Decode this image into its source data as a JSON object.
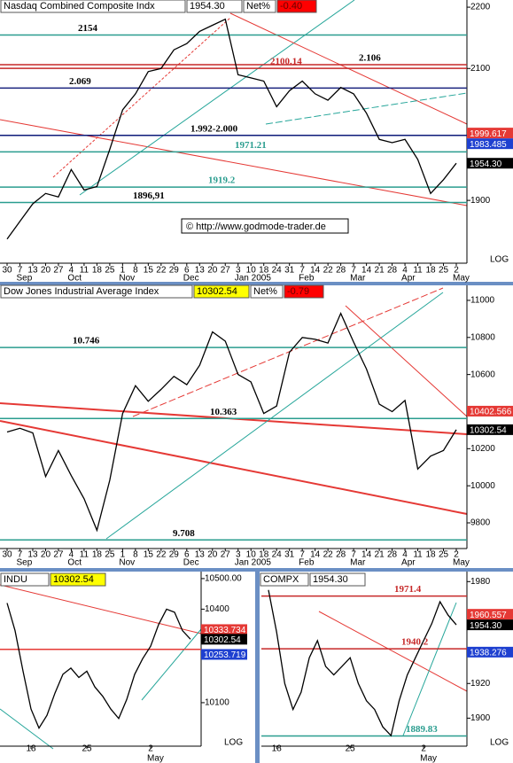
{
  "chart_data": [
    {
      "type": "line",
      "title": "Nasdaq Combined Composite Indx",
      "last": {
        "value": 1954.3,
        "label": "1954.30"
      },
      "last_color": "#ffffff",
      "net_caption": "Net%",
      "net": {
        "value": -0.4,
        "label": "-0.40"
      },
      "note": "© http://www.godmode-trader.de",
      "scale_label": "LOG",
      "log": true,
      "categories": [
        "30",
        "7",
        "13",
        "20",
        "27",
        "4",
        "11",
        "18",
        "25",
        "1",
        "8",
        "15",
        "22",
        "29",
        "6",
        "13",
        "20",
        "27",
        "3",
        "10",
        "18",
        "24",
        "31",
        "7",
        "14",
        "22",
        "28",
        "7",
        "14",
        "21",
        "28",
        "4",
        "11",
        "18",
        "25",
        "2"
      ],
      "month_labels": [
        null,
        "Sep",
        null,
        null,
        null,
        "Oct",
        null,
        null,
        null,
        "Nov",
        null,
        null,
        null,
        null,
        "Dec",
        null,
        null,
        null,
        "Jan 2005",
        null,
        null,
        null,
        null,
        "Feb",
        null,
        null,
        null,
        "Mar",
        null,
        null,
        null,
        "Apr",
        null,
        null,
        null,
        "May"
      ],
      "values": [
        1845,
        1870,
        1895,
        1910,
        1905,
        1945,
        1915,
        1920,
        1975,
        2035,
        2060,
        2095,
        2100,
        2130,
        2140,
        2160,
        2170,
        2180,
        2090,
        2085,
        2080,
        2040,
        2065,
        2080,
        2060,
        2050,
        2070,
        2060,
        2030,
        1990,
        1985,
        1990,
        1960,
        1910,
        1930,
        1954.3
      ],
      "color": "#000000",
      "ylim": [
        1814,
        2212
      ],
      "yticks": [
        1900,
        2100,
        2200
      ],
      "levels": [
        {
          "value": 2154,
          "label": "2154",
          "color": "#2a9d8f",
          "text_color": "#000000"
        },
        {
          "value": 2069,
          "label": "2.069",
          "color": "#1a237e",
          "text_color": "#000000"
        },
        {
          "value": 1996,
          "label": "1.992-2.000",
          "color": "#0d1b7a",
          "text_color": "#000000"
        },
        {
          "value": 1896.91,
          "label": "1896,91",
          "color": "#2a9d8f",
          "text_color": "#000000"
        },
        {
          "value": 2106,
          "label": "2.106",
          "color": "#c62828",
          "text_color": "#000000"
        },
        {
          "value": 2100.14,
          "label": "2100.14",
          "color": "#c62828",
          "text_color": "#c62828"
        },
        {
          "value": 1971.21,
          "label": "1971.21",
          "color": "#2a9d8f",
          "text_color": "#2a9d8f"
        },
        {
          "value": 1919.2,
          "label": "1919.2",
          "color": "#2a9d8f",
          "text_color": "#2a9d8f"
        }
      ],
      "price_tags": [
        {
          "value": 1999.617,
          "color": "#e53935"
        },
        {
          "value": 1983.485,
          "color": "#1e40d0"
        },
        {
          "value": 1954.3,
          "label": "1954.30",
          "color": "#000000"
        }
      ]
    },
    {
      "type": "line",
      "title": "Dow Jones Industrial Average Index",
      "last": {
        "value": 10302.54,
        "label": "10302.54"
      },
      "last_color": "#ffff00",
      "net_caption": "Net%",
      "net": {
        "value": -0.79,
        "label": "-0.79"
      },
      "log": false,
      "categories": [
        "30",
        "7",
        "13",
        "20",
        "27",
        "4",
        "11",
        "18",
        "25",
        "1",
        "8",
        "15",
        "22",
        "29",
        "6",
        "13",
        "20",
        "27",
        "3",
        "10",
        "18",
        "24",
        "31",
        "7",
        "14",
        "22",
        "28",
        "7",
        "14",
        "21",
        "28",
        "4",
        "11",
        "18",
        "25",
        "2"
      ],
      "month_labels": [
        null,
        "Sep",
        null,
        null,
        null,
        "Oct",
        null,
        null,
        null,
        "Nov",
        null,
        null,
        null,
        null,
        "Dec",
        null,
        null,
        null,
        "Jan 2005",
        null,
        null,
        null,
        null,
        "Feb",
        null,
        null,
        null,
        "Mar",
        null,
        null,
        null,
        "Apr",
        null,
        null,
        null,
        "May"
      ],
      "values": [
        10290,
        10310,
        10285,
        10050,
        10190,
        10055,
        9930,
        9760,
        10030,
        10390,
        10540,
        10456,
        10520,
        10590,
        10545,
        10650,
        10830,
        10780,
        10600,
        10560,
        10390,
        10430,
        10720,
        10800,
        10790,
        10770,
        10930,
        10775,
        10630,
        10440,
        10400,
        10460,
        10090,
        10160,
        10190,
        10302.54
      ],
      "color": "#000000",
      "ylim": [
        9671,
        11081
      ],
      "yticks": [
        9800,
        10000,
        10200,
        10600,
        10800,
        11000
      ],
      "levels": [
        {
          "value": 10746,
          "label": "10.746",
          "color": "#2a9d8f",
          "text_color": "#000000"
        },
        {
          "value": 10363,
          "label": "10.363",
          "color": "#2a9d8f",
          "text_color": "#000000"
        },
        {
          "value": 9708,
          "label": "9.708",
          "color": "#2a9d8f",
          "text_color": "#000000"
        }
      ],
      "price_tags": [
        {
          "value": 10402.566,
          "color": "#e53935"
        },
        {
          "value": 10302.54,
          "color": "#000000"
        }
      ]
    },
    {
      "type": "line",
      "title": "INDU",
      "last": {
        "value": 10302.54,
        "label": "10302.54"
      },
      "last_color": "#ffff00",
      "scale_label": "LOG",
      "log": true,
      "categories": [
        null,
        null,
        null,
        "18",
        null,
        null,
        null,
        null,
        null,
        null,
        "25",
        null,
        null,
        null,
        null,
        null,
        null,
        null,
        "2",
        null,
        null,
        null,
        null,
        null
      ],
      "month_labels": [
        null,
        null,
        null,
        null,
        null,
        null,
        null,
        null,
        null,
        null,
        null,
        null,
        null,
        null,
        null,
        null,
        null,
        null,
        "May",
        null,
        null,
        null,
        null,
        null
      ],
      "values": [
        10420,
        10330,
        10200,
        10080,
        10020,
        10060,
        10130,
        10190,
        10210,
        10180,
        10200,
        10150,
        10120,
        10080,
        10050,
        10110,
        10190,
        10240,
        10280,
        10350,
        10400,
        10390,
        10330,
        10302.54
      ],
      "color": "#000000",
      "ylim": [
        9969,
        10523
      ],
      "yticks": [
        {
          "value": 10500,
          "label": "10500.00"
        },
        10400,
        10100
      ],
      "levels": [
        {
          "value": 10270,
          "color": "#e53935"
        }
      ],
      "price_tags": [
        {
          "value": 10333.734,
          "color": "#e53935"
        },
        {
          "value": 10302.54,
          "color": "#000000"
        },
        {
          "value": 10253.719,
          "color": "#1e40d0"
        }
      ]
    },
    {
      "type": "line",
      "title": "COMPX",
      "last": {
        "value": 1954.3,
        "label": "1954.30"
      },
      "last_color": "#ffffff",
      "scale_label": "LOG",
      "log": true,
      "categories": [
        null,
        "18",
        null,
        null,
        null,
        null,
        null,
        null,
        null,
        null,
        "25",
        null,
        null,
        null,
        null,
        null,
        null,
        null,
        null,
        "2",
        null,
        null,
        null,
        null
      ],
      "month_labels": [
        null,
        null,
        null,
        null,
        null,
        null,
        null,
        null,
        null,
        null,
        null,
        null,
        null,
        null,
        null,
        null,
        null,
        null,
        null,
        "May",
        null,
        null,
        null,
        null
      ],
      "values": [
        1975,
        1950,
        1920,
        1905,
        1915,
        1935,
        1945,
        1930,
        1925,
        1930,
        1935,
        1920,
        1910,
        1905,
        1895,
        1890,
        1910,
        1925,
        1935,
        1945,
        1955,
        1968,
        1960,
        1954.3
      ],
      "color": "#000000",
      "ylim": [
        1885,
        1986
      ],
      "yticks": [
        1900,
        1920,
        1980
      ],
      "levels": [
        {
          "value": 1971.4,
          "label": "1971.4",
          "color": "#c62828",
          "text_color": "#c62828"
        },
        {
          "value": 1940.2,
          "label": "1940.2",
          "color": "#c62828",
          "text_color": "#c62828"
        },
        {
          "value": 1889.83,
          "label": "1889.83",
          "color": "#2a9d8f",
          "text_color": "#2a9d8f"
        }
      ],
      "price_tags": [
        {
          "value": 1960.557,
          "color": "#e53935"
        },
        {
          "value": 1954.3,
          "label": "1954.30",
          "color": "#000000"
        },
        {
          "value": 1938.276,
          "color": "#1e40d0"
        }
      ]
    }
  ]
}
